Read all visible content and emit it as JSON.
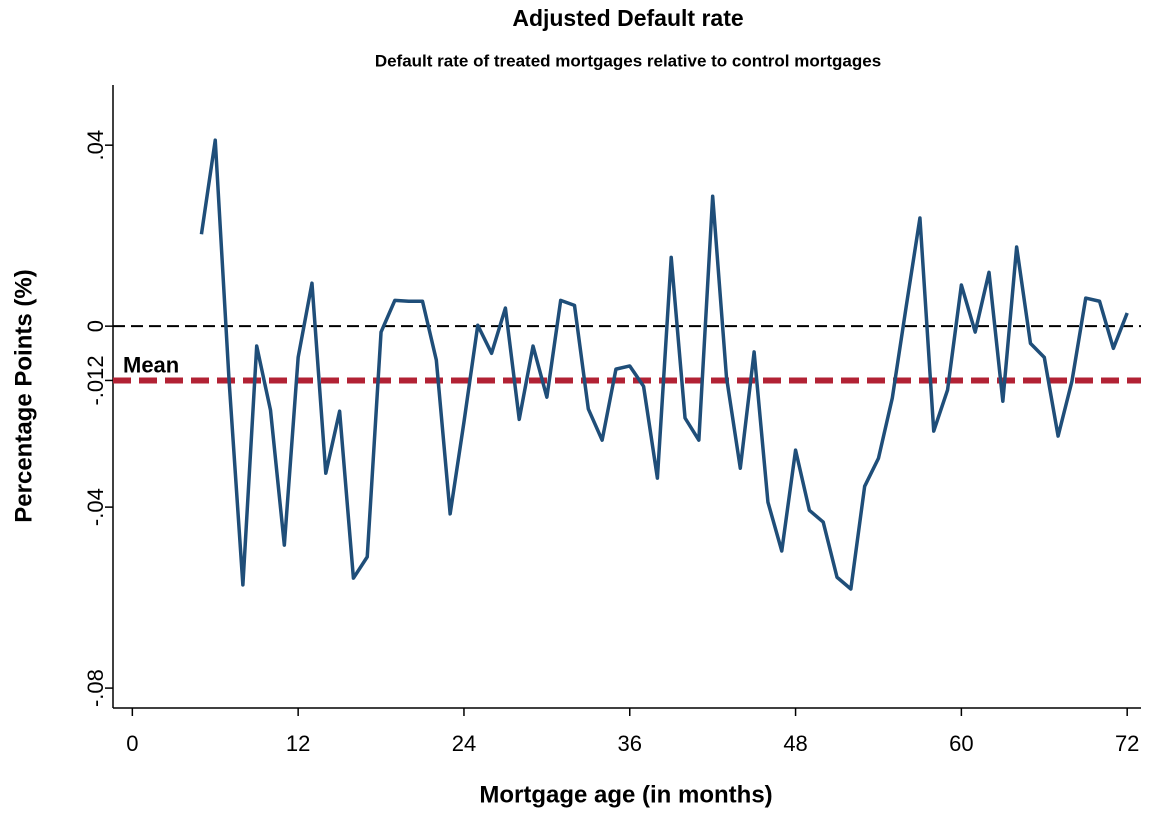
{
  "chart_data": {
    "type": "line",
    "title": "Adjusted Default rate",
    "subtitle": "Default rate of treated mortgages relative to control mortgages",
    "xlabel": "Mortgage age (in months)",
    "ylabel": "Percentage Points (%)",
    "x": [
      5,
      6,
      7,
      8,
      9,
      10,
      11,
      12,
      13,
      14,
      15,
      16,
      17,
      18,
      19,
      20,
      21,
      22,
      23,
      24,
      25,
      26,
      27,
      28,
      29,
      30,
      31,
      32,
      33,
      34,
      35,
      36,
      37,
      38,
      39,
      40,
      41,
      42,
      43,
      44,
      45,
      46,
      47,
      48,
      49,
      50,
      51,
      52,
      53,
      54,
      55,
      56,
      57,
      58,
      59,
      60,
      61,
      62,
      63,
      64,
      65,
      66,
      67,
      68,
      69,
      70,
      71,
      72
    ],
    "series": [
      {
        "color": "#1f4e79",
        "values": [
          0.0203,
          0.0411,
          -0.012,
          -0.0572,
          -0.0044,
          -0.0186,
          -0.0484,
          -0.0069,
          0.0095,
          -0.0325,
          -0.0188,
          -0.0557,
          -0.051,
          -0.0013,
          0.0057,
          0.0055,
          0.0055,
          -0.0075,
          -0.0415,
          -0.0212,
          0.0002,
          -0.006,
          0.004,
          -0.0206,
          -0.0044,
          -0.0157,
          0.0057,
          0.0046,
          -0.0183,
          -0.0252,
          -0.0095,
          -0.0088,
          -0.0133,
          -0.0336,
          0.0152,
          -0.0203,
          -0.0252,
          0.0287,
          -0.0113,
          -0.0314,
          -0.0057,
          -0.0389,
          -0.0497,
          -0.0274,
          -0.0407,
          -0.0433,
          -0.0555,
          -0.0581,
          -0.0354,
          -0.0292,
          -0.0159,
          0.0042,
          0.0239,
          -0.0232,
          -0.0141,
          0.0091,
          -0.0013,
          0.0119,
          -0.0166,
          0.0175,
          -0.0038,
          -0.0069,
          -0.0243,
          -0.0122,
          0.0062,
          0.0055,
          -0.0049,
          0.0029
        ]
      }
    ],
    "xlim": [
      -1.4,
      73
    ],
    "ylim": [
      -0.0844,
      0.0533
    ],
    "xticks": [
      0,
      12,
      24,
      36,
      48,
      60,
      72
    ],
    "yticks": [
      {
        "value": 0.04,
        "label": ".04"
      },
      0,
      {
        "value": -0.04,
        "label": "-.04"
      },
      {
        "value": -0.08,
        "label": "-.08"
      }
    ],
    "zero_line": {
      "value": 0,
      "color": "#000000"
    },
    "mean_line": {
      "value": -0.012,
      "label": "Mean",
      "tick_label": "-.012",
      "color": "#b22234"
    }
  }
}
